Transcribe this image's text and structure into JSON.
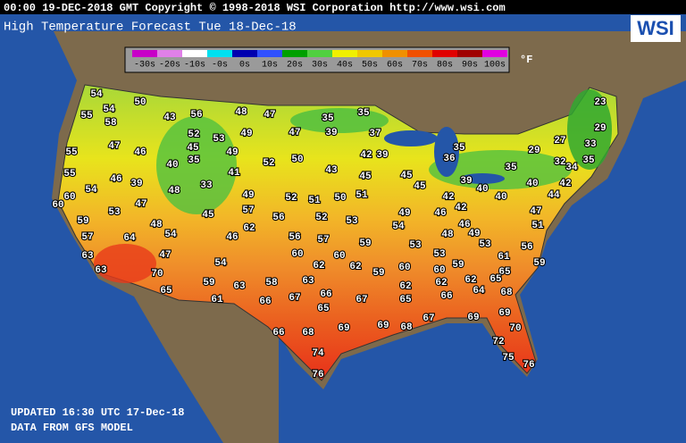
{
  "header": {
    "line": "00:00 19-DEC-2018 GMT Copyright © 1998-2018 WSI Corporation  http://www.wsi.com",
    "title": "High Temperature Forecast  Tue 18-Dec-18",
    "logo": "WSI"
  },
  "legend": {
    "unit": "°F",
    "items": [
      {
        "label": "-30s",
        "color": "#c800c8"
      },
      {
        "label": "-20s",
        "color": "#e080e8"
      },
      {
        "label": "-10s",
        "color": "#ffffff"
      },
      {
        "label": "-0s",
        "color": "#00e0f0"
      },
      {
        "label": "0s",
        "color": "#0000b0"
      },
      {
        "label": "10s",
        "color": "#3050ff"
      },
      {
        "label": "20s",
        "color": "#00a000"
      },
      {
        "label": "30s",
        "color": "#50d040"
      },
      {
        "label": "40s",
        "color": "#f0f000"
      },
      {
        "label": "50s",
        "color": "#f0c800"
      },
      {
        "label": "60s",
        "color": "#f09000"
      },
      {
        "label": "70s",
        "color": "#f05000"
      },
      {
        "label": "80s",
        "color": "#e00000"
      },
      {
        "label": "90s",
        "color": "#a00000"
      },
      {
        "label": "100s",
        "color": "#e000e0"
      }
    ]
  },
  "temperatures": [
    54,
    50,
    54,
    55,
    58,
    43,
    56,
    48,
    47,
    35,
    35,
    23,
    52,
    53,
    49,
    47,
    39,
    37,
    29,
    47,
    46,
    45,
    49,
    52,
    50,
    42,
    39,
    35,
    36,
    29,
    27,
    33,
    55,
    40,
    35,
    41,
    43,
    45,
    45,
    35,
    32,
    35,
    34,
    55,
    46,
    39,
    33,
    39,
    40,
    40,
    42,
    54,
    48,
    49,
    52,
    51,
    50,
    51,
    45,
    42,
    42,
    40,
    44,
    60,
    60,
    53,
    47,
    45,
    57,
    56,
    52,
    53,
    49,
    46,
    47,
    59,
    48,
    62,
    46,
    51,
    54,
    57,
    64,
    54,
    46,
    56,
    57,
    59,
    53,
    48,
    49,
    53,
    56,
    63,
    47,
    54,
    60,
    60,
    53,
    61,
    59,
    70,
    62,
    62,
    59,
    60,
    60,
    59,
    65,
    63,
    58,
    63,
    62,
    62,
    62,
    65,
    64,
    68,
    59,
    63,
    65,
    61,
    66,
    67,
    66,
    65,
    67,
    65,
    66,
    69,
    67,
    69,
    70,
    69,
    68,
    69,
    66,
    68,
    72,
    74,
    75,
    76,
    76
  ],
  "footer": {
    "updated": "UPDATED 16:30 UTC 17-Dec-18",
    "source": "DATA FROM GFS MODEL"
  }
}
